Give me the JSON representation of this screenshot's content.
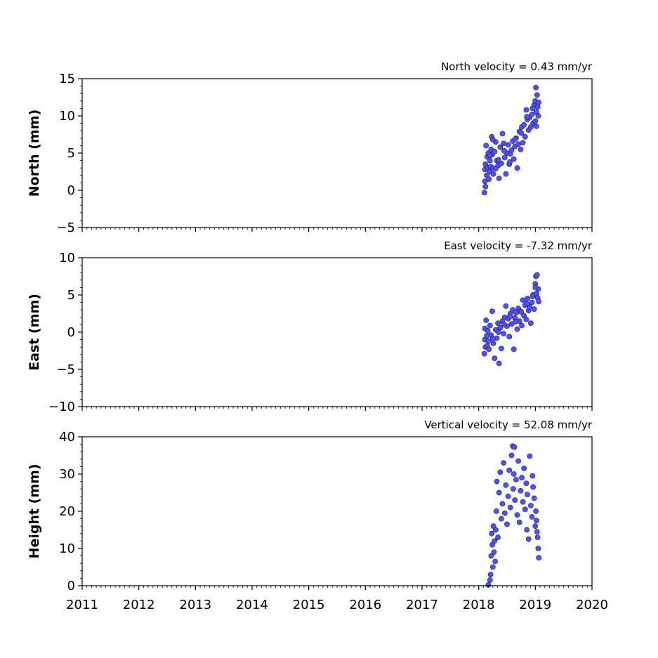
{
  "chart_data": [
    {
      "type": "scatter",
      "title": "North velocity = 0.43 mm/yr",
      "ylabel": "North (mm)",
      "xlabel": "",
      "xlim": [
        2011,
        2020
      ],
      "ylim": [
        -5,
        15
      ],
      "x_ticks": [
        "2011",
        "2012",
        "2013",
        "2014",
        "2015",
        "2016",
        "2017",
        "2018",
        "2019",
        "2020"
      ],
      "y_ticks": [
        "−5",
        "0",
        "5",
        "10",
        "15"
      ],
      "marker_color": "#5050ff",
      "marker_edge": "#202040",
      "series": [
        {
          "x": [
            2018.1,
            2018.11,
            2018.11,
            2018.12,
            2018.12,
            2018.13,
            2018.14,
            2018.15,
            2018.16,
            2018.17,
            2018.18,
            2018.19,
            2018.2,
            2018.21,
            2018.22,
            2018.23,
            2018.24,
            2018.25,
            2018.26,
            2018.28,
            2018.3,
            2018.32,
            2018.34,
            2018.36,
            2018.38,
            2018.4,
            2018.42,
            2018.44,
            2018.46,
            2018.48,
            2018.5,
            2018.52,
            2018.54,
            2018.56,
            2018.58,
            2018.6,
            2018.62,
            2018.64,
            2018.66,
            2018.68,
            2018.7,
            2018.72,
            2018.74,
            2018.76,
            2018.78,
            2018.8,
            2018.82,
            2018.84,
            2018.86,
            2018.88,
            2018.9,
            2018.92,
            2018.94,
            2018.96,
            2018.98,
            2019.0,
            2019.01,
            2019.02,
            2019.03,
            2019.04,
            2019.05,
            2019.06,
            2019.02,
            2019.0,
            2018.2,
            2018.25,
            2018.3,
            2018.35,
            2018.45,
            2018.55,
            2018.65,
            2018.75,
            2018.85,
            2018.95
          ],
          "y": [
            -0.3,
            1.2,
            2.8,
            0.5,
            3.5,
            6.0,
            2.0,
            4.5,
            3.0,
            5.0,
            1.5,
            2.5,
            4.0,
            3.2,
            5.5,
            7.2,
            4.8,
            3.0,
            2.2,
            5.2,
            6.5,
            4.0,
            3.3,
            1.6,
            5.8,
            3.6,
            7.6,
            6.3,
            4.4,
            2.2,
            5.0,
            6.1,
            3.5,
            4.9,
            5.4,
            6.6,
            4.2,
            5.9,
            7.0,
            3.0,
            6.2,
            7.9,
            5.5,
            8.5,
            6.4,
            8.8,
            7.2,
            10.8,
            9.5,
            8.1,
            9.8,
            8.5,
            10.2,
            9.0,
            11.5,
            12.0,
            13.8,
            10.5,
            12.8,
            11.2,
            10.0,
            11.8,
            8.6,
            9.3,
            4.7,
            6.8,
            2.9,
            4.1,
            5.3,
            3.8,
            6.9,
            7.7,
            9.9,
            11.0
          ]
        }
      ]
    },
    {
      "type": "scatter",
      "title": "East velocity = -7.32 mm/yr",
      "ylabel": "East (mm)",
      "xlabel": "",
      "xlim": [
        2011,
        2020
      ],
      "ylim": [
        -10,
        10
      ],
      "x_ticks": [
        "2011",
        "2012",
        "2013",
        "2014",
        "2015",
        "2016",
        "2017",
        "2018",
        "2019",
        "2020"
      ],
      "y_ticks": [
        "−10",
        "−5",
        "0",
        "5",
        "10"
      ],
      "marker_color": "#5050ff",
      "marker_edge": "#202040",
      "series": [
        {
          "x": [
            2018.1,
            2018.11,
            2018.11,
            2018.12,
            2018.13,
            2018.14,
            2018.15,
            2018.16,
            2018.17,
            2018.18,
            2018.2,
            2018.22,
            2018.24,
            2018.26,
            2018.28,
            2018.3,
            2018.32,
            2018.34,
            2018.36,
            2018.38,
            2018.4,
            2018.42,
            2018.44,
            2018.46,
            2018.48,
            2018.5,
            2018.52,
            2018.54,
            2018.56,
            2018.58,
            2018.6,
            2018.62,
            2018.64,
            2018.66,
            2018.68,
            2018.7,
            2018.72,
            2018.74,
            2018.76,
            2018.78,
            2018.8,
            2018.82,
            2018.84,
            2018.86,
            2018.88,
            2018.9,
            2018.92,
            2018.94,
            2018.96,
            2018.98,
            2019.0,
            2019.01,
            2019.02,
            2019.03,
            2019.04,
            2019.05,
            2019.06,
            2019.0,
            2018.25,
            2018.35,
            2018.45,
            2018.55,
            2018.65,
            2018.75,
            2018.85,
            2018.95
          ],
          "y": [
            -2.9,
            -1.0,
            0.5,
            -2.0,
            1.6,
            -0.5,
            -1.8,
            0.2,
            -1.2,
            -2.3,
            0.9,
            -0.4,
            2.8,
            -1.5,
            -3.5,
            0.3,
            -0.8,
            1.2,
            -4.2,
            0.6,
            -2.2,
            1.5,
            -0.2,
            2.0,
            3.5,
            0.8,
            1.8,
            -0.6,
            2.5,
            1.1,
            3.0,
            -2.3,
            1.9,
            2.6,
            0.4,
            3.2,
            1.5,
            2.8,
            0.9,
            4.3,
            2.2,
            3.6,
            1.7,
            4.5,
            2.9,
            3.4,
            1.2,
            4.0,
            5.0,
            3.1,
            6.5,
            7.5,
            5.2,
            7.7,
            4.6,
            5.8,
            4.1,
            6.0,
            -0.9,
            0.0,
            1.0,
            2.1,
            1.4,
            2.7,
            3.8,
            4.8
          ]
        }
      ]
    },
    {
      "type": "scatter",
      "title": "Vertical velocity = 52.08 mm/yr",
      "ylabel": "Height (mm)",
      "xlabel": "",
      "xlim": [
        2011,
        2020
      ],
      "ylim": [
        0,
        40
      ],
      "x_ticks": [
        "2011",
        "2012",
        "2013",
        "2014",
        "2015",
        "2016",
        "2017",
        "2018",
        "2019",
        "2020"
      ],
      "y_ticks": [
        "0",
        "10",
        "20",
        "30",
        "40"
      ],
      "marker_color": "#5050ff",
      "marker_edge": "#202040",
      "series": [
        {
          "x": [
            2018.17,
            2018.2,
            2018.21,
            2018.22,
            2018.23,
            2018.24,
            2018.25,
            2018.26,
            2018.27,
            2018.28,
            2018.29,
            2018.3,
            2018.31,
            2018.32,
            2018.34,
            2018.36,
            2018.38,
            2018.4,
            2018.42,
            2018.44,
            2018.46,
            2018.48,
            2018.5,
            2018.52,
            2018.54,
            2018.56,
            2018.58,
            2018.6,
            2018.61,
            2018.62,
            2018.63,
            2018.64,
            2018.66,
            2018.68,
            2018.7,
            2018.72,
            2018.74,
            2018.76,
            2018.78,
            2018.8,
            2018.82,
            2018.84,
            2018.86,
            2018.88,
            2018.9,
            2018.92,
            2018.94,
            2018.96,
            2018.98,
            2019.0,
            2019.01,
            2019.02,
            2019.03,
            2019.04,
            2019.05,
            2019.06,
            2018.95,
            2018.85
          ],
          "y": [
            0.2,
            1.5,
            3.0,
            8.0,
            14.0,
            11.0,
            5.0,
            16.0,
            9.0,
            12.0,
            6.5,
            15.0,
            20.0,
            28.0,
            13.0,
            25.0,
            30.5,
            18.0,
            22.0,
            33.0,
            19.5,
            27.0,
            16.5,
            24.0,
            31.0,
            21.0,
            35.0,
            37.5,
            26.0,
            30.0,
            37.2,
            23.0,
            28.5,
            19.0,
            33.5,
            17.0,
            25.5,
            29.0,
            22.5,
            31.5,
            20.5,
            27.5,
            24.5,
            12.5,
            34.8,
            21.5,
            18.5,
            26.5,
            23.5,
            16.0,
            20.0,
            17.5,
            14.5,
            13.0,
            10.0,
            7.5,
            29.5,
            15.0
          ]
        }
      ]
    }
  ]
}
